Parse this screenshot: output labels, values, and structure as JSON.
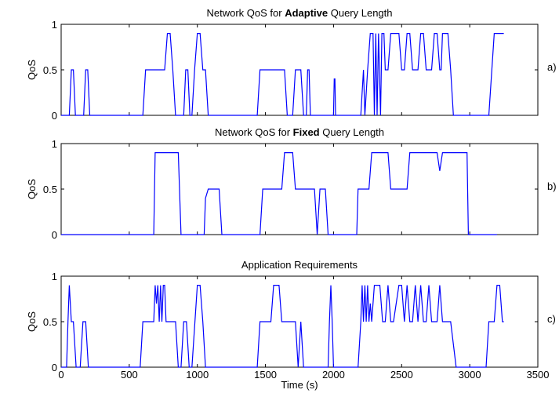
{
  "figure": {
    "xlabel": "Time (s)",
    "x_ticks": [
      "0",
      "500",
      "1000",
      "1500",
      "2000",
      "2500",
      "3000",
      "3500"
    ],
    "y_ticks": [
      "0",
      "0.5",
      "1"
    ],
    "line_color": "#0000ff"
  },
  "chart_data": [
    {
      "type": "line",
      "tag": "a)",
      "title_pre": "Network QoS for ",
      "title_bold": "Adaptive",
      "title_post": " Query Length",
      "ylabel": "QoS",
      "xlim": [
        0,
        3500
      ],
      "ylim": [
        0,
        1
      ],
      "grid": false,
      "series": [
        {
          "x": [
            0,
            60,
            75,
            90,
            105,
            120,
            165,
            180,
            195,
            210,
            600,
            620,
            760,
            780,
            800,
            820,
            840,
            900,
            915,
            930,
            945,
            960,
            980,
            1000,
            1020,
            1040,
            1060,
            1080,
            1440,
            1460,
            1640,
            1660,
            1700,
            1720,
            1760,
            1780,
            1800,
            1810,
            1820,
            1830,
            2000,
            2005,
            2010,
            2015,
            2020,
            2200,
            2220,
            2230,
            2250,
            2270,
            2290,
            2300,
            2310,
            2320,
            2330,
            2345,
            2355,
            2370,
            2380,
            2400,
            2420,
            2440,
            2480,
            2500,
            2520,
            2540,
            2560,
            2580,
            2620,
            2640,
            2660,
            2680,
            2720,
            2740,
            2760,
            2780,
            2790,
            2800,
            2840,
            2860,
            2880,
            2900,
            3140,
            3180,
            3250
          ],
          "y": [
            0,
            0,
            0.5,
            0.5,
            0,
            0,
            0,
            0.5,
            0.5,
            0,
            0,
            0.5,
            0.5,
            0.9,
            0.9,
            0.5,
            0,
            0,
            0.5,
            0.5,
            0,
            0,
            0.5,
            0.9,
            0.9,
            0.5,
            0.5,
            0,
            0,
            0.5,
            0.5,
            0,
            0,
            0.5,
            0.5,
            0,
            0,
            0.5,
            0.5,
            0,
            0,
            0.4,
            0.4,
            0,
            0,
            0,
            0.5,
            0,
            0.5,
            0.9,
            0.9,
            0,
            0.9,
            0,
            0.9,
            0,
            0.9,
            0.9,
            0.5,
            0.5,
            0.9,
            0.9,
            0.9,
            0.5,
            0.5,
            0.9,
            0.9,
            0.5,
            0.5,
            0.9,
            0.9,
            0.5,
            0.5,
            0.9,
            0.9,
            0.5,
            0.5,
            0.9,
            0.9,
            0.5,
            0,
            0,
            0,
            0.9,
            0.9
          ]
        }
      ]
    },
    {
      "type": "line",
      "tag": "b)",
      "title_pre": "Network QoS for ",
      "title_bold": "Fixed",
      "title_post": " Query Length",
      "ylabel": "QoS",
      "xlim": [
        0,
        3500
      ],
      "ylim": [
        0,
        1
      ],
      "grid": false,
      "series": [
        {
          "x": [
            0,
            680,
            690,
            860,
            880,
            1050,
            1060,
            1080,
            1160,
            1180,
            1460,
            1480,
            1620,
            1640,
            1700,
            1720,
            1860,
            1880,
            1900,
            1940,
            1960,
            2170,
            2180,
            2260,
            2280,
            2400,
            2420,
            2540,
            2560,
            2760,
            2780,
            2800,
            2820,
            2980,
            2990,
            3200
          ],
          "y": [
            0,
            0,
            0.9,
            0.9,
            0,
            0,
            0.4,
            0.5,
            0.5,
            0,
            0,
            0.5,
            0.5,
            0.9,
            0.9,
            0.5,
            0.5,
            0,
            0.5,
            0.5,
            0,
            0,
            0.5,
            0.5,
            0.9,
            0.9,
            0.5,
            0.5,
            0.9,
            0.9,
            0.7,
            0.9,
            0.9,
            0.9,
            0,
            0
          ]
        }
      ]
    },
    {
      "type": "line",
      "tag": "c)",
      "title": "Application Requirements",
      "ylabel": "QoS",
      "xlabel": "Time (s)",
      "xlim": [
        0,
        3500
      ],
      "ylim": [
        0,
        1
      ],
      "grid": false,
      "series": [
        {
          "x": [
            0,
            40,
            50,
            60,
            75,
            90,
            110,
            140,
            160,
            180,
            200,
            220,
            580,
            600,
            680,
            690,
            700,
            710,
            720,
            730,
            740,
            750,
            760,
            770,
            780,
            840,
            860,
            880,
            900,
            920,
            940,
            960,
            1000,
            1020,
            1040,
            1060,
            1080,
            1440,
            1460,
            1540,
            1560,
            1600,
            1620,
            1720,
            1740,
            1760,
            1780,
            1960,
            1970,
            1980,
            1990,
            2000,
            2180,
            2200,
            2210,
            2220,
            2230,
            2240,
            2250,
            2260,
            2270,
            2280,
            2300,
            2340,
            2360,
            2380,
            2400,
            2420,
            2440,
            2480,
            2500,
            2520,
            2540,
            2560,
            2580,
            2600,
            2620,
            2640,
            2660,
            2680,
            2700,
            2720,
            2740,
            2760,
            2780,
            2800,
            2820,
            2840,
            2860,
            2900,
            2920,
            3120,
            3140,
            3180,
            3200,
            3220,
            3240,
            3250
          ],
          "y": [
            0,
            0,
            0.5,
            0.9,
            0.5,
            0.5,
            0,
            0,
            0.5,
            0.5,
            0,
            0,
            0,
            0.5,
            0.5,
            0.9,
            0.7,
            0.9,
            0.5,
            0.9,
            0.5,
            0.9,
            0.9,
            0.5,
            0.5,
            0.5,
            0,
            0,
            0.5,
            0.5,
            0,
            0,
            0.9,
            0.9,
            0.5,
            0,
            0,
            0,
            0.5,
            0.5,
            0.9,
            0.9,
            0.5,
            0.5,
            0,
            0.5,
            0,
            0,
            0.5,
            0.9,
            0.5,
            0,
            0,
            0.5,
            0.9,
            0.5,
            0.9,
            0.5,
            0.9,
            0.5,
            0.7,
            0.5,
            0.9,
            0.9,
            0.5,
            0.5,
            0.9,
            0.5,
            0.5,
            0.9,
            0.9,
            0.5,
            0.9,
            0.5,
            0.5,
            0.9,
            0.5,
            0.9,
            0.5,
            0.5,
            0.9,
            0.5,
            0.5,
            0.5,
            0.9,
            0.5,
            0.5,
            0.5,
            0.5,
            0,
            0,
            0,
            0.5,
            0.5,
            0.9,
            0.9,
            0.5,
            0.5
          ]
        }
      ]
    }
  ]
}
